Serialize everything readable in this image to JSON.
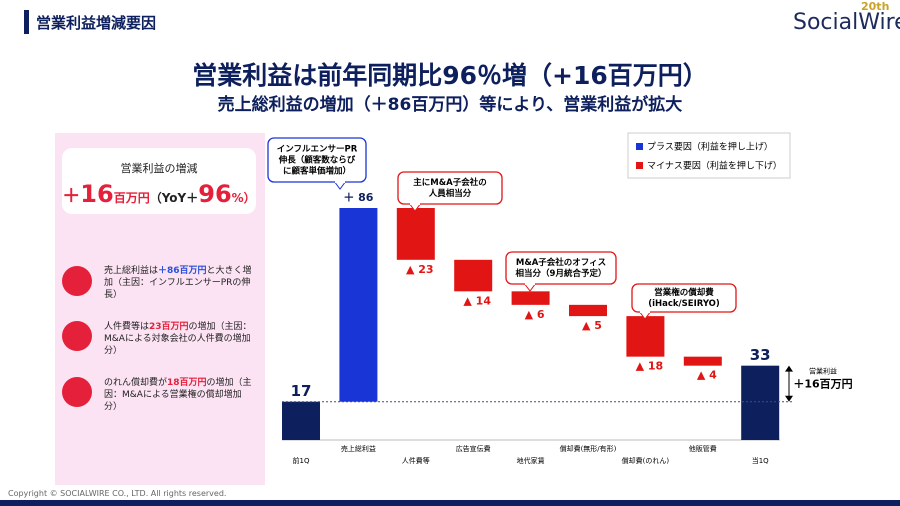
{
  "header": {
    "title": "営業利益増減要因",
    "logo": "SocialWire",
    "logo_badge": "20th"
  },
  "headline": {
    "title": "営業利益は前年同期比96％増（+16百万円）",
    "subtitle": "売上総利益の増加（＋86百万円）等により、営業利益が拡大"
  },
  "summary": {
    "label": "営業利益の増減",
    "parts": [
      "＋",
      "16",
      "百万円",
      "（YoY＋",
      "96",
      "%）"
    ]
  },
  "items": [
    {
      "parts": [
        "売上総利益は",
        "＋86百万円",
        "と大きく増加（主因：インフルエンサーPRの伸長）"
      ]
    },
    {
      "parts": [
        "人件費等は",
        "23百万円",
        "の増加（主因：M&Aによる対象会社の人件費の増加分）"
      ]
    },
    {
      "parts": [
        "のれん償却費が",
        "18百万円",
        "の増加（主因：M&Aによる営業権の償却増加分）"
      ]
    }
  ],
  "footer": {
    "copyright": "Copyright © SOCIALWIRE CO., LTD. All rights reserved."
  },
  "chart_data": {
    "type": "waterfall",
    "categories": [
      "前1Q",
      "売上総利益",
      "人件費等",
      "広告宣伝費",
      "地代家賃",
      "償却費(無形/有形)",
      "償却費(のれん)",
      "他販管費",
      "当1Q"
    ],
    "values": [
      17,
      86,
      -23,
      -14,
      -6,
      -5,
      -18,
      -4,
      33
    ],
    "value_labels": [
      "17",
      "＋ 86",
      "▲ 23",
      "▲ 14",
      "▲ 6",
      "▲ 5",
      "▲ 18",
      "▲ 4",
      "33"
    ],
    "total_color": "#0d1f5c",
    "increase_color": "#1a35d6",
    "decrease_color": "#e21515",
    "legend": [
      "プラス要因（利益を押し上げ）",
      "マイナス要因（利益を押し下げ）"
    ],
    "annotations": [
      [
        "インフルエンサーPR",
        "伸長（顧客数ならび",
        "に顧客単価増加）"
      ],
      [
        "主にM&A子会社の",
        "人員相当分"
      ],
      [
        "M&A子会社のオフィス",
        "相当分（9月統合予定）"
      ],
      [
        "営業権の償却費",
        "(iHack/SEIRYO)"
      ]
    ],
    "change_note": [
      "営業利益",
      "＋16百万円"
    ]
  }
}
